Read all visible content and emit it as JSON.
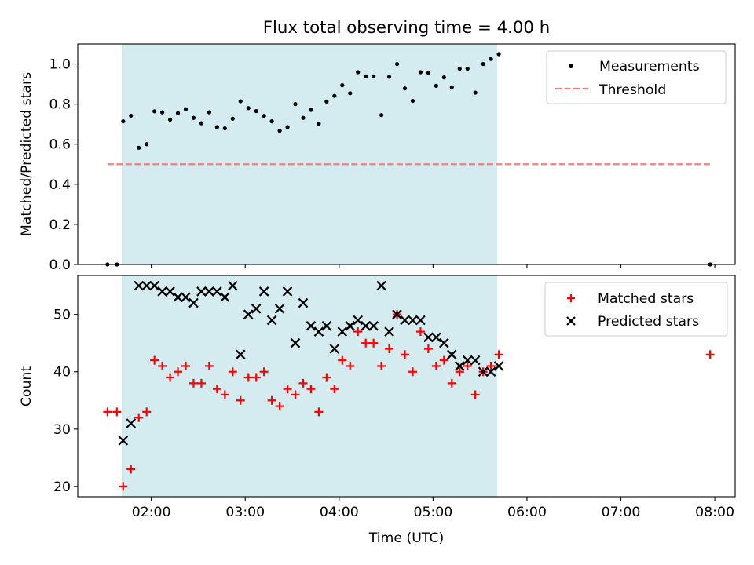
{
  "chart_data": [
    {
      "type": "scatter",
      "title": "Flux total observing time = 4.00 h",
      "xlabel": "",
      "ylabel": "Matched/Predicted stars",
      "xlim": [
        "01:13",
        "08:13"
      ],
      "ylim": [
        0,
        1.1
      ],
      "xticks": [
        "02:00",
        "03:00",
        "04:00",
        "05:00",
        "06:00",
        "07:00",
        "08:00"
      ],
      "xtick_labels_shown": false,
      "yticks": [
        0.0,
        0.2,
        0.4,
        0.6,
        0.8,
        1.0
      ],
      "ytick_labels": [
        "0.0",
        "0.2",
        "0.4",
        "0.6",
        "0.8",
        "1.0"
      ],
      "grid": false,
      "legend": "upper-right",
      "observing_window": [
        "01:41",
        "05:41"
      ],
      "window_color": "#d4ebf0",
      "series": [
        {
          "name": "Measurements",
          "kind": "points",
          "color": "#000000",
          "points": [
            [
              "01:32",
              0.0
            ],
            [
              "01:38",
              0.0
            ],
            [
              "01:42",
              0.714
            ],
            [
              "01:47",
              0.742
            ],
            [
              "01:52",
              0.582
            ],
            [
              "01:57",
              0.6
            ],
            [
              "02:02",
              0.764
            ],
            [
              "02:07",
              0.759
            ],
            [
              "02:12",
              0.722
            ],
            [
              "02:17",
              0.755
            ],
            [
              "02:22",
              0.774
            ],
            [
              "02:27",
              0.731
            ],
            [
              "02:32",
              0.704
            ],
            [
              "02:37",
              0.759
            ],
            [
              "02:42",
              0.685
            ],
            [
              "02:47",
              0.679
            ],
            [
              "02:52",
              0.727
            ],
            [
              "02:57",
              0.814
            ],
            [
              "03:02",
              0.78
            ],
            [
              "03:07",
              0.765
            ],
            [
              "03:12",
              0.741
            ],
            [
              "03:17",
              0.714
            ],
            [
              "03:22",
              0.667
            ],
            [
              "03:27",
              0.685
            ],
            [
              "03:32",
              0.8
            ],
            [
              "03:37",
              0.731
            ],
            [
              "03:42",
              0.771
            ],
            [
              "03:47",
              0.702
            ],
            [
              "03:52",
              0.813
            ],
            [
              "03:57",
              0.841
            ],
            [
              "04:02",
              0.894
            ],
            [
              "04:07",
              0.854
            ],
            [
              "04:12",
              0.959
            ],
            [
              "04:17",
              0.938
            ],
            [
              "04:22",
              0.938
            ],
            [
              "04:27",
              0.745
            ],
            [
              "04:32",
              0.936
            ],
            [
              "04:37",
              1.0
            ],
            [
              "04:42",
              0.878
            ],
            [
              "04:47",
              0.816
            ],
            [
              "04:52",
              0.959
            ],
            [
              "04:57",
              0.956
            ],
            [
              "05:02",
              0.891
            ],
            [
              "05:07",
              0.933
            ],
            [
              "05:12",
              0.884
            ],
            [
              "05:17",
              0.976
            ],
            [
              "05:22",
              0.976
            ],
            [
              "05:27",
              0.857
            ],
            [
              "05:32",
              1.0
            ],
            [
              "05:37",
              1.025
            ],
            [
              "05:42",
              1.049
            ],
            [
              "07:57",
              0.0
            ]
          ]
        },
        {
          "name": "Threshold",
          "kind": "dashed-line",
          "color": "#f08080",
          "points": [
            [
              "01:32",
              0.5
            ],
            [
              "07:57",
              0.5
            ]
          ]
        }
      ]
    },
    {
      "type": "scatter",
      "title": "",
      "xlabel": "Time (UTC)",
      "ylabel": "Count",
      "xlim": [
        "01:13",
        "08:13"
      ],
      "ylim": [
        18.2,
        56.8
      ],
      "xticks": [
        "02:00",
        "03:00",
        "04:00",
        "05:00",
        "06:00",
        "07:00",
        "08:00"
      ],
      "xtick_labels": [
        "02:00",
        "03:00",
        "04:00",
        "05:00",
        "06:00",
        "07:00",
        "08:00"
      ],
      "yticks": [
        20,
        30,
        40,
        50
      ],
      "ytick_labels": [
        "20",
        "30",
        "40",
        "50"
      ],
      "grid": false,
      "legend": "upper-right",
      "observing_window": [
        "01:41",
        "05:41"
      ],
      "window_color": "#d4ebf0",
      "series": [
        {
          "name": "Matched stars",
          "marker": "plus",
          "color": "#ff0000",
          "points": [
            [
              "01:32",
              33
            ],
            [
              "01:38",
              33
            ],
            [
              "01:42",
              20
            ],
            [
              "01:47",
              23
            ],
            [
              "01:52",
              32
            ],
            [
              "01:57",
              33
            ],
            [
              "02:02",
              42
            ],
            [
              "02:07",
              41
            ],
            [
              "02:12",
              39
            ],
            [
              "02:17",
              40
            ],
            [
              "02:22",
              41
            ],
            [
              "02:27",
              38
            ],
            [
              "02:32",
              38
            ],
            [
              "02:37",
              41
            ],
            [
              "02:42",
              37
            ],
            [
              "02:47",
              36
            ],
            [
              "02:52",
              40
            ],
            [
              "02:57",
              35
            ],
            [
              "03:02",
              39
            ],
            [
              "03:07",
              39
            ],
            [
              "03:12",
              40
            ],
            [
              "03:17",
              35
            ],
            [
              "03:22",
              34
            ],
            [
              "03:27",
              37
            ],
            [
              "03:32",
              36
            ],
            [
              "03:37",
              38
            ],
            [
              "03:42",
              37
            ],
            [
              "03:47",
              33
            ],
            [
              "03:52",
              39
            ],
            [
              "03:57",
              37
            ],
            [
              "04:02",
              42
            ],
            [
              "04:07",
              41
            ],
            [
              "04:12",
              47
            ],
            [
              "04:17",
              45
            ],
            [
              "04:22",
              45
            ],
            [
              "04:27",
              41
            ],
            [
              "04:32",
              44
            ],
            [
              "04:37",
              50
            ],
            [
              "04:42",
              43
            ],
            [
              "04:47",
              40
            ],
            [
              "04:52",
              47
            ],
            [
              "04:57",
              44
            ],
            [
              "05:02",
              41
            ],
            [
              "05:07",
              42
            ],
            [
              "05:12",
              38
            ],
            [
              "05:17",
              40
            ],
            [
              "05:22",
              41
            ],
            [
              "05:27",
              36
            ],
            [
              "05:32",
              40
            ],
            [
              "05:37",
              41
            ],
            [
              "05:42",
              43
            ],
            [
              "07:57",
              43
            ]
          ]
        },
        {
          "name": "Predicted stars",
          "marker": "x",
          "color": "#000000",
          "points": [
            [
              "01:42",
              28
            ],
            [
              "01:47",
              31
            ],
            [
              "01:52",
              55
            ],
            [
              "01:57",
              55
            ],
            [
              "02:02",
              55
            ],
            [
              "02:07",
              54
            ],
            [
              "02:12",
              54
            ],
            [
              "02:17",
              53
            ],
            [
              "02:22",
              53
            ],
            [
              "02:27",
              52
            ],
            [
              "02:32",
              54
            ],
            [
              "02:37",
              54
            ],
            [
              "02:42",
              54
            ],
            [
              "02:47",
              53
            ],
            [
              "02:52",
              55
            ],
            [
              "02:57",
              43
            ],
            [
              "03:02",
              50
            ],
            [
              "03:07",
              51
            ],
            [
              "03:12",
              54
            ],
            [
              "03:17",
              49
            ],
            [
              "03:22",
              51
            ],
            [
              "03:27",
              54
            ],
            [
              "03:32",
              45
            ],
            [
              "03:37",
              52
            ],
            [
              "03:42",
              48
            ],
            [
              "03:47",
              47
            ],
            [
              "03:52",
              48
            ],
            [
              "03:57",
              44
            ],
            [
              "04:02",
              47
            ],
            [
              "04:07",
              48
            ],
            [
              "04:12",
              49
            ],
            [
              "04:17",
              48
            ],
            [
              "04:22",
              48
            ],
            [
              "04:27",
              55
            ],
            [
              "04:32",
              47
            ],
            [
              "04:37",
              50
            ],
            [
              "04:42",
              49
            ],
            [
              "04:47",
              49
            ],
            [
              "04:52",
              49
            ],
            [
              "04:57",
              46
            ],
            [
              "05:02",
              46
            ],
            [
              "05:07",
              45
            ],
            [
              "05:12",
              43
            ],
            [
              "05:17",
              41
            ],
            [
              "05:22",
              42
            ],
            [
              "05:27",
              42
            ],
            [
              "05:32",
              40
            ],
            [
              "05:37",
              40
            ],
            [
              "05:42",
              41
            ]
          ]
        }
      ]
    }
  ]
}
